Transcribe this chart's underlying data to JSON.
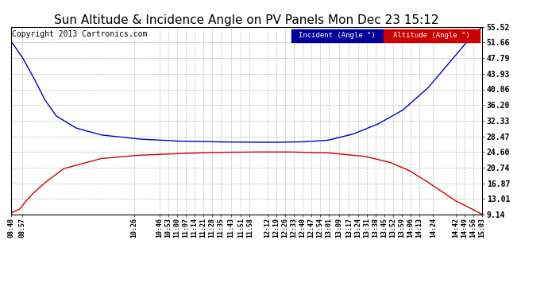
{
  "title": "Sun Altitude & Incidence Angle on PV Panels Mon Dec 23 15:12",
  "copyright": "Copyright 2013 Cartronics.com",
  "legend_incident": "Incident (Angle °)",
  "legend_altitude": "Altitude (Angle °)",
  "yticks": [
    9.14,
    13.01,
    16.87,
    20.74,
    24.6,
    28.47,
    32.33,
    36.2,
    40.06,
    43.93,
    47.79,
    51.66,
    55.52
  ],
  "xtick_labels": [
    "08:48",
    "08:57",
    "10:26",
    "10:46",
    "10:53",
    "11:00",
    "11:07",
    "11:14",
    "11:21",
    "11:28",
    "11:35",
    "11:43",
    "11:51",
    "11:58",
    "12:12",
    "12:19",
    "12:26",
    "12:33",
    "12:40",
    "12:47",
    "12:54",
    "13:01",
    "13:09",
    "13:17",
    "13:24",
    "13:31",
    "13:38",
    "13:45",
    "13:52",
    "13:59",
    "14:06",
    "14:13",
    "14:24",
    "14:42",
    "14:49",
    "14:56",
    "15:03"
  ],
  "incident_color": "#0000cc",
  "altitude_color": "#cc0000",
  "bg_color": "#ffffff",
  "grid_color": "#bbbbbb",
  "title_fontsize": 11,
  "copyright_fontsize": 7,
  "ymin": 9.14,
  "ymax": 55.52,
  "legend_blue_bg": "#000099",
  "legend_red_bg": "#cc0000"
}
